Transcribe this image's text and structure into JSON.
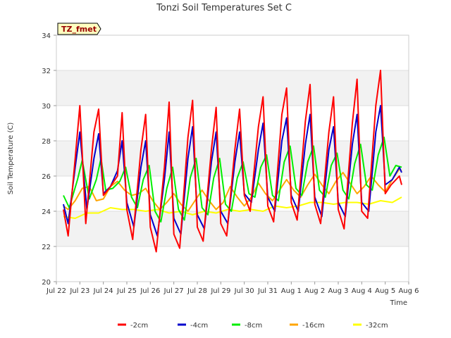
{
  "chart_data": {
    "type": "line",
    "title": "Tonzi Soil Temperatures Set C",
    "xlabel": "Time",
    "ylabel": "Soil Temperature (C)",
    "ylim": [
      20,
      34
    ],
    "yticks": [
      20,
      22,
      24,
      26,
      28,
      30,
      32,
      34
    ],
    "xlim": [
      "2021-07-22",
      "2021-08-06"
    ],
    "xtick_labels": [
      "Jul 22",
      "Jul 23",
      "Jul 24",
      "Jul 25",
      "Jul 26",
      "Jul 27",
      "Jul 28",
      "Jul 29",
      "Jul 30",
      "Jul 31",
      "Aug 1",
      "Aug 2",
      "Aug 3",
      "Aug 4",
      "Aug 5",
      "Aug 6"
    ],
    "grid": "horizontal bands",
    "legend_position": "bottom",
    "annotation": "TZ_fmet",
    "series": [
      {
        "name": "-2cm",
        "color": "#ff0000",
        "x_days": [
          0.3,
          0.5,
          0.8,
          1.0,
          1.25,
          1.6,
          1.8,
          2.0,
          2.25,
          2.6,
          2.8,
          3.0,
          3.25,
          3.6,
          3.8,
          4.0,
          4.25,
          4.6,
          4.8,
          5.0,
          5.25,
          5.6,
          5.8,
          6.0,
          6.25,
          6.6,
          6.8,
          7.0,
          7.25,
          7.6,
          7.8,
          8.0,
          8.25,
          8.6,
          8.8,
          9.0,
          9.25,
          9.6,
          9.8,
          10.0,
          10.25,
          10.6,
          10.8,
          11.0,
          11.25,
          11.6,
          11.8,
          12.0,
          12.25,
          12.6,
          12.8,
          13.0,
          13.25,
          13.6,
          13.8,
          14.0,
          14.25,
          14.6,
          14.7
        ],
        "values": [
          24.1,
          22.6,
          27.0,
          30.0,
          23.3,
          28.5,
          29.8,
          24.9,
          25.3,
          26.0,
          29.6,
          24.1,
          22.4,
          27.5,
          29.5,
          23.1,
          21.7,
          26.5,
          30.2,
          22.7,
          21.9,
          28.2,
          30.3,
          23.1,
          22.3,
          27.5,
          29.9,
          23.3,
          22.6,
          27.5,
          29.8,
          24.9,
          24.0,
          28.8,
          30.5,
          24.3,
          23.4,
          29.5,
          31.0,
          24.5,
          23.5,
          29.1,
          31.2,
          24.4,
          23.3,
          28.5,
          30.5,
          24.1,
          23.0,
          29.0,
          31.5,
          24.0,
          23.6,
          30.0,
          32.0,
          25.0,
          25.5,
          26.0,
          25.5
        ]
      },
      {
        "name": "-4cm",
        "color": "#0000cc",
        "x_days": [
          0.3,
          0.5,
          0.8,
          1.0,
          1.3,
          1.6,
          1.8,
          2.0,
          2.3,
          2.6,
          2.8,
          3.0,
          3.3,
          3.6,
          3.8,
          4.0,
          4.3,
          4.6,
          4.8,
          5.0,
          5.3,
          5.6,
          5.8,
          6.0,
          6.3,
          6.6,
          6.8,
          7.0,
          7.3,
          7.6,
          7.8,
          8.0,
          8.3,
          8.6,
          8.8,
          9.0,
          9.3,
          9.6,
          9.8,
          10.0,
          10.3,
          10.6,
          10.8,
          11.0,
          11.3,
          11.6,
          11.8,
          12.0,
          12.3,
          12.6,
          12.8,
          13.0,
          13.3,
          13.6,
          13.8,
          14.0,
          14.3,
          14.6,
          14.7
        ],
        "values": [
          24.4,
          23.3,
          26.5,
          28.5,
          24.1,
          27.0,
          28.4,
          25.0,
          25.4,
          26.3,
          28.0,
          24.5,
          23.1,
          26.5,
          28.0,
          23.8,
          22.6,
          25.8,
          28.5,
          23.6,
          22.7,
          27.0,
          28.8,
          23.8,
          23.0,
          26.8,
          28.5,
          24.0,
          23.3,
          26.8,
          28.5,
          25.0,
          24.5,
          27.5,
          29.0,
          24.8,
          24.0,
          28.0,
          29.3,
          24.9,
          24.0,
          27.8,
          29.5,
          24.8,
          23.7,
          27.5,
          28.8,
          24.5,
          23.7,
          27.8,
          29.5,
          24.5,
          24.0,
          28.5,
          30.0,
          25.5,
          25.8,
          26.5,
          26.2
        ]
      },
      {
        "name": "-8cm",
        "color": "#00ee00",
        "x_days": [
          0.3,
          0.55,
          0.9,
          1.1,
          1.4,
          1.7,
          1.9,
          2.1,
          2.4,
          2.7,
          2.95,
          3.2,
          3.45,
          3.7,
          3.95,
          4.2,
          4.45,
          4.7,
          4.95,
          5.2,
          5.45,
          5.7,
          5.95,
          6.2,
          6.45,
          6.7,
          6.95,
          7.2,
          7.45,
          7.7,
          7.95,
          8.2,
          8.45,
          8.7,
          8.95,
          9.2,
          9.45,
          9.7,
          9.95,
          10.2,
          10.45,
          10.7,
          10.95,
          11.2,
          11.45,
          11.7,
          11.95,
          12.2,
          12.45,
          12.7,
          12.95,
          13.2,
          13.45,
          13.7,
          13.95,
          14.2,
          14.45,
          14.7
        ],
        "values": [
          24.9,
          24.2,
          25.8,
          26.9,
          24.7,
          25.8,
          27.0,
          25.2,
          25.3,
          25.7,
          26.5,
          24.8,
          24.2,
          25.8,
          26.6,
          24.0,
          23.4,
          25.3,
          26.5,
          24.1,
          23.5,
          25.9,
          27.0,
          24.2,
          23.8,
          25.9,
          27.0,
          24.4,
          24.0,
          25.9,
          26.8,
          25.0,
          24.8,
          26.5,
          27.2,
          24.9,
          24.6,
          26.8,
          27.7,
          25.3,
          24.9,
          26.8,
          27.7,
          25.2,
          24.8,
          26.6,
          27.3,
          25.2,
          24.7,
          26.7,
          27.8,
          25.5,
          25.2,
          27.2,
          28.2,
          26.0,
          26.6,
          26.5
        ]
      },
      {
        "name": "-16cm",
        "color": "#ffa500",
        "x_days": [
          0.3,
          0.5,
          0.8,
          1.1,
          1.4,
          1.7,
          2.0,
          2.3,
          2.6,
          2.9,
          3.2,
          3.5,
          3.8,
          4.1,
          4.4,
          4.7,
          5.0,
          5.3,
          5.6,
          5.9,
          6.2,
          6.5,
          6.8,
          7.1,
          7.4,
          7.7,
          8.0,
          8.3,
          8.6,
          8.9,
          9.2,
          9.5,
          9.8,
          10.1,
          10.4,
          10.7,
          11.0,
          11.3,
          11.6,
          11.9,
          12.2,
          12.5,
          12.8,
          13.1,
          13.4,
          13.7,
          14.0,
          14.3,
          14.6,
          14.7
        ],
        "values": [
          24.3,
          24.1,
          24.6,
          25.3,
          25.4,
          24.6,
          24.7,
          25.4,
          25.7,
          25.2,
          24.9,
          25.0,
          25.3,
          24.6,
          24.1,
          24.5,
          25.0,
          24.4,
          24.0,
          24.6,
          25.2,
          24.6,
          24.1,
          24.5,
          25.4,
          24.8,
          24.3,
          24.8,
          25.6,
          25.0,
          24.6,
          25.2,
          25.8,
          25.2,
          24.8,
          25.5,
          26.1,
          25.5,
          25.0,
          25.7,
          26.2,
          25.6,
          25.0,
          25.4,
          26.0,
          25.5,
          25.1,
          25.8,
          26.4,
          26.3
        ]
      },
      {
        "name": "-32cm",
        "color": "#ffff00",
        "x_days": [
          0.3,
          0.8,
          1.3,
          1.8,
          2.3,
          2.8,
          3.3,
          3.8,
          4.3,
          4.8,
          5.3,
          5.8,
          6.3,
          6.8,
          7.3,
          7.8,
          8.3,
          8.8,
          9.3,
          9.8,
          10.3,
          10.8,
          11.3,
          11.8,
          12.3,
          12.8,
          13.3,
          13.8,
          14.3,
          14.7
        ],
        "values": [
          23.7,
          23.6,
          23.9,
          23.9,
          24.2,
          24.1,
          24.1,
          24.0,
          24.1,
          23.9,
          24.0,
          23.8,
          24.0,
          23.9,
          24.1,
          24.0,
          24.1,
          24.0,
          24.3,
          24.2,
          24.3,
          24.5,
          24.5,
          24.4,
          24.5,
          24.5,
          24.4,
          24.6,
          24.5,
          24.8
        ]
      }
    ]
  }
}
